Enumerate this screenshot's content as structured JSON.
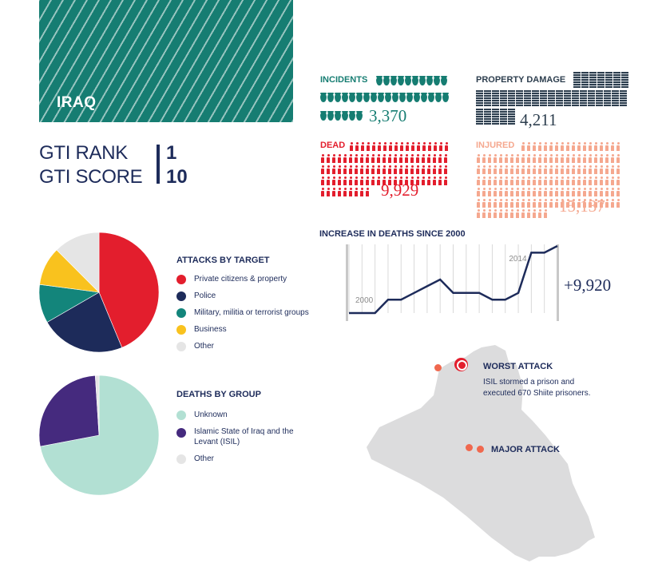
{
  "country": "IRAQ",
  "gti": {
    "rank_label": "GTI RANK",
    "rank_value": "1",
    "score_label": "GTI SCORE",
    "score_value": "10"
  },
  "stats": {
    "incidents": {
      "label": "INCIDENTS",
      "value": "3,370",
      "color": "#167d72"
    },
    "property_damage": {
      "label": "PROPERTY DAMAGE",
      "value": "4,211",
      "color": "#2d3e4e"
    },
    "dead": {
      "label": "DEAD",
      "value": "9,929",
      "color": "#e31e2d"
    },
    "injured": {
      "label": "INJURED",
      "value": "15,137",
      "color": "#f5a88f"
    }
  },
  "colors": {
    "red": "#e31e2d",
    "navy": "#1d2b5a",
    "teal": "#13857b",
    "yellow": "#f9c21e",
    "grey": "#e5e5e5",
    "mint": "#b2e0d3",
    "purple": "#452a7e",
    "map": "#dcdcdd",
    "attack": "#f0684e"
  },
  "attacks_by_target": {
    "title": "ATTACKS BY TARGET",
    "legend": [
      {
        "label": "Private citizens & property",
        "color": "#e31e2d"
      },
      {
        "label": "Police",
        "color": "#1d2b5a"
      },
      {
        "label": "Military, militia or terrorist groups",
        "color": "#13857b"
      },
      {
        "label": "Business",
        "color": "#f9c21e"
      },
      {
        "label": "Other",
        "color": "#e5e5e5"
      }
    ]
  },
  "deaths_by_group": {
    "title": "DEATHS BY GROUP",
    "legend": [
      {
        "label": "Unknown",
        "color": "#b2e0d3"
      },
      {
        "label_line1": "Islamic State of Iraq and the",
        "label_line2": "Levant (ISIL)",
        "color": "#452a7e"
      },
      {
        "label": "Other",
        "color": "#e5e5e5"
      }
    ]
  },
  "chart_data": [
    {
      "type": "pie",
      "title": "ATTACKS BY TARGET",
      "categories": [
        "Private citizens & property",
        "Police",
        "Military, militia or terrorist groups",
        "Business",
        "Other"
      ],
      "values": [
        42,
        22,
        10,
        10,
        12
      ]
    },
    {
      "type": "pie",
      "title": "DEATHS BY GROUP",
      "categories": [
        "Unknown",
        "Islamic State of Iraq and the Levant (ISIL)",
        "Other"
      ],
      "values": [
        72,
        27,
        1
      ]
    },
    {
      "type": "line",
      "title": "INCREASE IN DEATHS SINCE 2000",
      "x": [
        2000,
        2001,
        2002,
        2003,
        2004,
        2005,
        2006,
        2007,
        2008,
        2009,
        2010,
        2011,
        2012,
        2013,
        2014,
        2015,
        2016
      ],
      "y": [
        0,
        0,
        0,
        2,
        2,
        3,
        4,
        5,
        3,
        3,
        3,
        2,
        2,
        3,
        9,
        9,
        10
      ],
      "x_tick_labels": [
        "2000",
        "2014"
      ],
      "annotation": "+9,920",
      "grid": "vertical"
    }
  ],
  "map": {
    "worst_attack": {
      "title": "WORST ATTACK",
      "desc_line1": "ISIL stormed a prison and",
      "desc_line2": "executed 670 Shiite prisoners."
    },
    "major_attack": {
      "title": "MAJOR ATTACK"
    }
  }
}
